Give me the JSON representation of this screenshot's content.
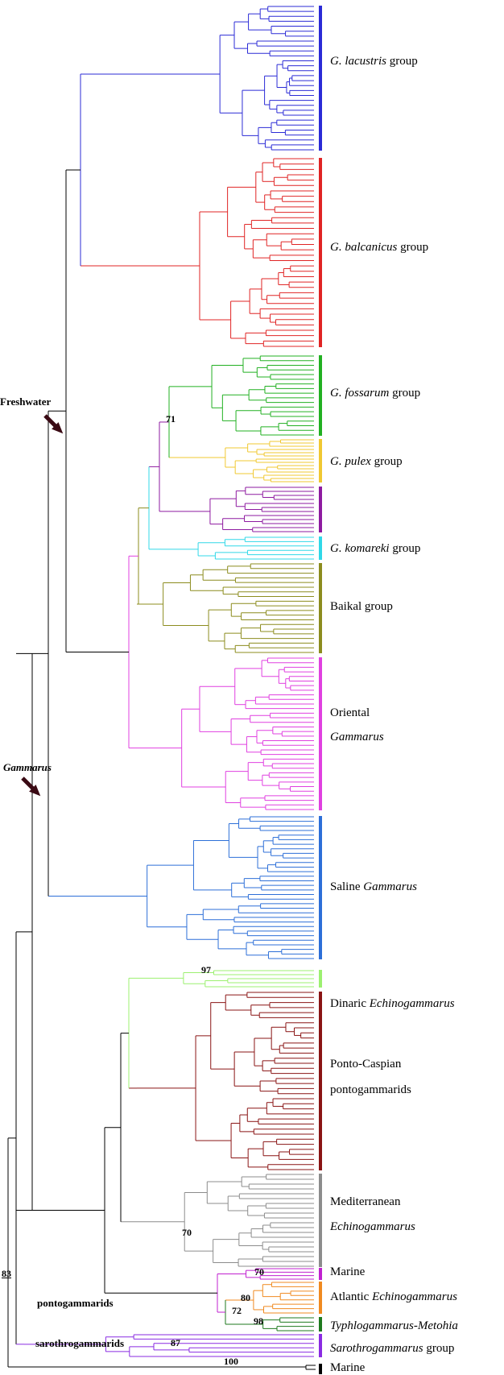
{
  "colors": {
    "lacustris": "#2b2bd6",
    "balcanicus": "#e02424",
    "fossarum": "#22b022",
    "pulex": "#f0c832",
    "purple_clade": "#8e1aa0",
    "komareki": "#30d8e8",
    "baikal": "#8c8c1e",
    "oriental": "#e040e0",
    "saline": "#2d6fd8",
    "dinaric": "#9cf070",
    "ponto_caspian": "#8a1414",
    "mediterranean": "#8c8c8c",
    "marine_magenta": "#c020d0",
    "atlantic": "#f08a20",
    "typhlo": "#1e7a1e",
    "sarothro": "#8a2be2",
    "backbone": "#000000"
  },
  "groups": [
    {
      "id": "lacustris",
      "pre": "",
      "ital": "G. lacustris",
      "post": " group",
      "color_key": "lacustris"
    },
    {
      "id": "balcanicus",
      "pre": "",
      "ital": "G. balcanicus",
      "post": " group",
      "color_key": "balcanicus"
    },
    {
      "id": "fossarum",
      "pre": "",
      "ital": "G. fossarum",
      "post": " group",
      "color_key": "fossarum"
    },
    {
      "id": "pulex",
      "pre": "",
      "ital": "G. pulex",
      "post": " group",
      "color_key": "pulex"
    },
    {
      "id": "komareki",
      "pre": "",
      "ital": "G. komareki",
      "post": " group",
      "color_key": "komareki"
    },
    {
      "id": "baikal",
      "pre": "Baikal group",
      "ital": "",
      "post": "",
      "color_key": "baikal"
    },
    {
      "id": "oriental1",
      "pre": "Oriental",
      "ital": "",
      "post": "",
      "color_key": "oriental"
    },
    {
      "id": "oriental2",
      "pre": "",
      "ital": "Gammarus",
      "post": "",
      "color_key": "oriental"
    },
    {
      "id": "saline",
      "pre": "Saline ",
      "ital": "Gammarus",
      "post": "",
      "color_key": "saline"
    },
    {
      "id": "dinaric",
      "pre": "Dinaric ",
      "ital": "Echinogammarus",
      "post": "",
      "color_key": "dinaric"
    },
    {
      "id": "ponto1",
      "pre": "Ponto-Caspian",
      "ital": "",
      "post": "",
      "color_key": "ponto_caspian"
    },
    {
      "id": "ponto2",
      "pre": "pontogammarids",
      "ital": "",
      "post": "",
      "color_key": "ponto_caspian"
    },
    {
      "id": "medit1",
      "pre": "Mediterranean",
      "ital": "",
      "post": "",
      "color_key": "mediterranean"
    },
    {
      "id": "medit2",
      "pre": "",
      "ital": "Echinogammarus",
      "post": "",
      "color_key": "mediterranean"
    },
    {
      "id": "marine1",
      "pre": "Marine",
      "ital": "",
      "post": "",
      "color_key": "marine_magenta"
    },
    {
      "id": "atlantic",
      "pre": "Atlantic ",
      "ital": "Echinogammarus",
      "post": "",
      "color_key": "atlantic"
    },
    {
      "id": "typhlo",
      "pre": "",
      "ital": "Typhlogammarus-Metohia",
      "post": "",
      "color_key": "typhlo"
    },
    {
      "id": "sarothro",
      "pre": "",
      "ital": "Sarothrogammarus",
      "post": " group",
      "color_key": "sarothro"
    },
    {
      "id": "marine2",
      "pre": "Marine",
      "ital": "",
      "post": "",
      "color_key": "backbone"
    }
  ],
  "support_values": [
    "71",
    "97",
    "70",
    "70",
    "80",
    "72",
    "98",
    "87",
    "100",
    "83"
  ],
  "node_labels": {
    "freshwater": "Freshwater",
    "gammarus": "Gammarus",
    "pontogammarids": "pontogammarids",
    "sarothrogammarids": "sarothrogammarids"
  }
}
